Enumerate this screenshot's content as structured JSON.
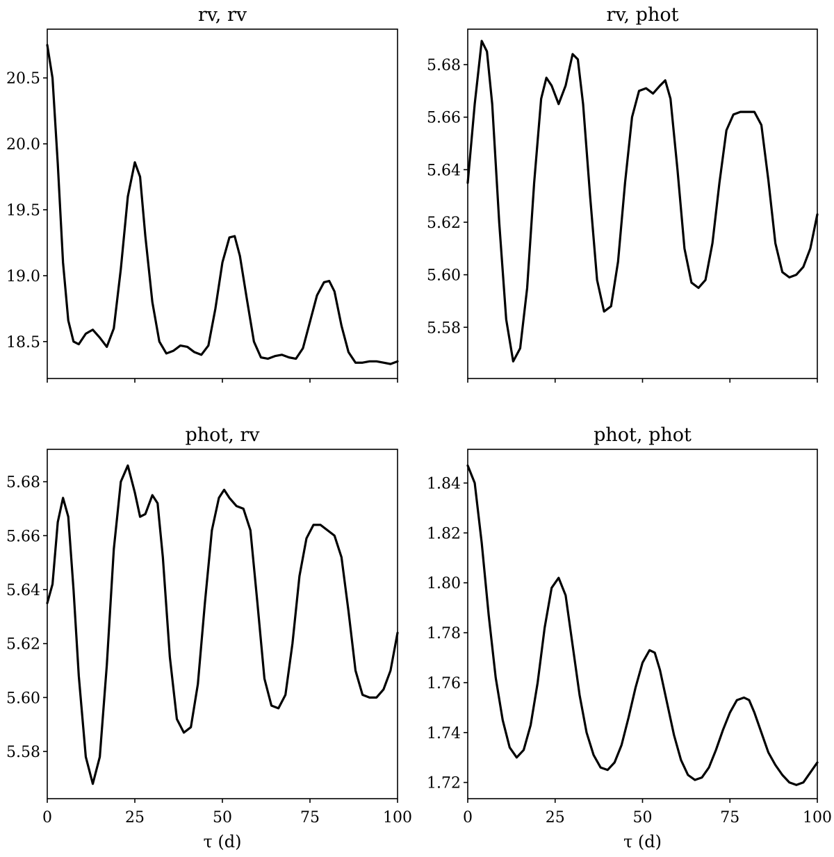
{
  "chart_data": [
    {
      "type": "line",
      "title": "rv, rv",
      "xlabel": "",
      "ylabel": "",
      "xlim": [
        0,
        100
      ],
      "ylim": [
        18.22,
        20.87
      ],
      "xticks": [
        0,
        25,
        50,
        75,
        100
      ],
      "xtick_labels": [
        "",
        "",
        "",
        "",
        ""
      ],
      "yticks": [
        18.5,
        19.0,
        19.5,
        20.0,
        20.5
      ],
      "ytick_labels": [
        "18.5",
        "19.0",
        "19.5",
        "20.0",
        "20.5"
      ],
      "grid": false,
      "series": [
        {
          "x": [
            0,
            1.5,
            3,
            4.5,
            6,
            7.5,
            9,
            11,
            13,
            15,
            17,
            19,
            21,
            23,
            25,
            26.5,
            28,
            30,
            32,
            34,
            36,
            38,
            40,
            42,
            44,
            46,
            48,
            50,
            52,
            53.5,
            55,
            57,
            59,
            61,
            63,
            65,
            67,
            69,
            71,
            73,
            75,
            77,
            79,
            80.5,
            82,
            84,
            86,
            88,
            90,
            92,
            94,
            96,
            98,
            100
          ],
          "values": [
            20.75,
            20.5,
            19.85,
            19.1,
            18.66,
            18.5,
            18.48,
            18.56,
            18.59,
            18.53,
            18.46,
            18.6,
            19.05,
            19.6,
            19.86,
            19.75,
            19.3,
            18.8,
            18.5,
            18.41,
            18.43,
            18.47,
            18.46,
            18.42,
            18.4,
            18.47,
            18.75,
            19.1,
            19.29,
            19.3,
            19.15,
            18.82,
            18.5,
            18.38,
            18.37,
            18.39,
            18.4,
            18.38,
            18.37,
            18.45,
            18.65,
            18.85,
            18.95,
            18.96,
            18.88,
            18.62,
            18.42,
            18.34,
            18.34,
            18.35,
            18.35,
            18.34,
            18.33,
            18.35
          ]
        }
      ]
    },
    {
      "type": "line",
      "title": "rv, phot",
      "xlabel": "",
      "ylabel": "",
      "xlim": [
        0,
        100
      ],
      "ylim": [
        5.5605,
        5.6935
      ],
      "xticks": [
        0,
        25,
        50,
        75,
        100
      ],
      "xtick_labels": [
        "",
        "",
        "",
        "",
        ""
      ],
      "yticks": [
        5.58,
        5.6,
        5.62,
        5.64,
        5.66,
        5.68
      ],
      "ytick_labels": [
        "5.58",
        "5.60",
        "5.62",
        "5.64",
        "5.66",
        "5.68"
      ],
      "grid": false,
      "series": [
        {
          "x": [
            0,
            2,
            4,
            5.5,
            7,
            9,
            11,
            13,
            15,
            17,
            19,
            21,
            22.5,
            24,
            26,
            28,
            30,
            31.5,
            33,
            35,
            37,
            39,
            41,
            43,
            45,
            47,
            49,
            51,
            53,
            55,
            56.5,
            58,
            60,
            62,
            64,
            66,
            68,
            70,
            72,
            74,
            76,
            78,
            80,
            82,
            84,
            86,
            88,
            90,
            92,
            94,
            96,
            98,
            100
          ],
          "values": [
            5.635,
            5.665,
            5.689,
            5.685,
            5.665,
            5.62,
            5.583,
            5.567,
            5.572,
            5.595,
            5.635,
            5.667,
            5.675,
            5.672,
            5.665,
            5.672,
            5.684,
            5.682,
            5.665,
            5.63,
            5.598,
            5.586,
            5.588,
            5.605,
            5.635,
            5.66,
            5.67,
            5.671,
            5.669,
            5.672,
            5.674,
            5.667,
            5.64,
            5.61,
            5.597,
            5.595,
            5.598,
            5.612,
            5.635,
            5.655,
            5.661,
            5.662,
            5.662,
            5.662,
            5.657,
            5.636,
            5.612,
            5.601,
            5.599,
            5.6,
            5.603,
            5.61,
            5.623
          ]
        }
      ]
    },
    {
      "type": "line",
      "title": "phot, rv",
      "xlabel": "τ (d)",
      "ylabel": "",
      "xlim": [
        0,
        100
      ],
      "ylim": [
        5.5625,
        5.692
      ],
      "xticks": [
        0,
        25,
        50,
        75,
        100
      ],
      "xtick_labels": [
        "0",
        "25",
        "50",
        "75",
        "100"
      ],
      "yticks": [
        5.58,
        5.6,
        5.62,
        5.64,
        5.66,
        5.68
      ],
      "ytick_labels": [
        "5.58",
        "5.60",
        "5.62",
        "5.64",
        "5.66",
        "5.68"
      ],
      "grid": false,
      "series": [
        {
          "x": [
            0,
            1.5,
            3,
            4.5,
            6,
            7.5,
            9,
            11,
            13,
            15,
            17,
            19,
            21,
            23,
            25,
            26.5,
            28,
            30,
            31.5,
            33,
            35,
            37,
            39,
            41,
            43,
            45,
            47,
            49,
            50.5,
            52,
            54,
            56,
            58,
            60,
            62,
            64,
            66,
            68,
            70,
            72,
            74,
            76,
            78,
            80,
            82,
            84,
            86,
            88,
            90,
            92,
            94,
            96,
            98,
            100
          ],
          "values": [
            5.635,
            5.642,
            5.665,
            5.674,
            5.667,
            5.64,
            5.608,
            5.578,
            5.568,
            5.578,
            5.612,
            5.655,
            5.68,
            5.686,
            5.676,
            5.667,
            5.668,
            5.675,
            5.672,
            5.652,
            5.615,
            5.592,
            5.587,
            5.589,
            5.605,
            5.635,
            5.662,
            5.674,
            5.677,
            5.674,
            5.671,
            5.67,
            5.662,
            5.635,
            5.607,
            5.597,
            5.596,
            5.601,
            5.62,
            5.645,
            5.659,
            5.664,
            5.664,
            5.662,
            5.66,
            5.652,
            5.632,
            5.61,
            5.601,
            5.6,
            5.6,
            5.603,
            5.61,
            5.624
          ]
        }
      ]
    },
    {
      "type": "line",
      "title": "phot, phot",
      "xlabel": "τ (d)",
      "ylabel": "",
      "xlim": [
        0,
        100
      ],
      "ylim": [
        1.7135,
        1.8535
      ],
      "xticks": [
        0,
        25,
        50,
        75,
        100
      ],
      "xtick_labels": [
        "0",
        "25",
        "50",
        "75",
        "100"
      ],
      "yticks": [
        1.72,
        1.74,
        1.76,
        1.78,
        1.8,
        1.82,
        1.84
      ],
      "ytick_labels": [
        "1.72",
        "1.74",
        "1.76",
        "1.78",
        "1.80",
        "1.82",
        "1.84"
      ],
      "grid": false,
      "series": [
        {
          "x": [
            0,
            2,
            4,
            6,
            8,
            10,
            12,
            14,
            16,
            18,
            20,
            22,
            24,
            26,
            28,
            30,
            32,
            34,
            36,
            38,
            40,
            42,
            44,
            46,
            48,
            50,
            52,
            53.5,
            55,
            57,
            59,
            61,
            63,
            65,
            67,
            69,
            71,
            73,
            75,
            77,
            79,
            80.5,
            82,
            84,
            86,
            88,
            90,
            92,
            94,
            96,
            98,
            100
          ],
          "values": [
            1.847,
            1.84,
            1.816,
            1.787,
            1.762,
            1.745,
            1.734,
            1.73,
            1.733,
            1.743,
            1.76,
            1.782,
            1.798,
            1.802,
            1.795,
            1.775,
            1.755,
            1.74,
            1.731,
            1.726,
            1.725,
            1.728,
            1.735,
            1.746,
            1.758,
            1.768,
            1.773,
            1.772,
            1.765,
            1.752,
            1.739,
            1.729,
            1.723,
            1.721,
            1.722,
            1.726,
            1.733,
            1.741,
            1.748,
            1.753,
            1.754,
            1.753,
            1.748,
            1.74,
            1.732,
            1.727,
            1.723,
            1.72,
            1.719,
            1.72,
            1.724,
            1.728
          ]
        }
      ]
    }
  ]
}
